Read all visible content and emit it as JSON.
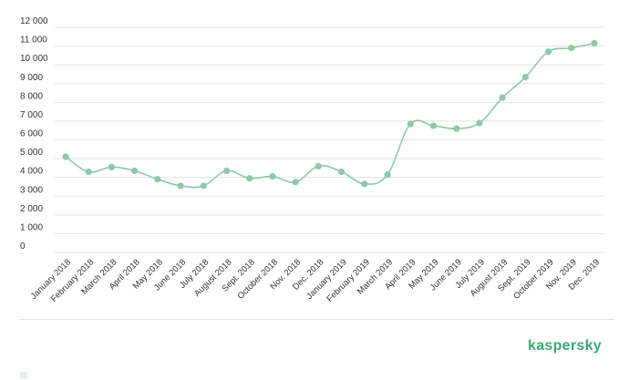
{
  "brand": {
    "name": "kaspersky",
    "color": "#3aa876"
  },
  "chart_data": {
    "type": "line",
    "title": "",
    "xlabel": "",
    "ylabel": "",
    "ylim": [
      0,
      12000
    ],
    "y_ticks": [
      0,
      1000,
      2000,
      3000,
      4000,
      5000,
      6000,
      7000,
      8000,
      9000,
      10000,
      11000,
      12000
    ],
    "y_tick_labels": [
      "0",
      "1 000",
      "2 000",
      "3 000",
      "4 000",
      "5 000",
      "6 000",
      "7 000",
      "8 000",
      "9 000",
      "10 000",
      "11 000",
      "12 000"
    ],
    "grid": true,
    "legend": "none",
    "color": "#8ec9a5",
    "categories": [
      "January 2018",
      "February 2018",
      "March 2018",
      "April 2018",
      "May 2018",
      "June 2018",
      "July 2018",
      "August 2018",
      "Sept. 2018",
      "October 2018",
      "Nov. 2018",
      "Dec. 2018",
      "January 2019",
      "February 2019",
      "March 2019",
      "April 2019",
      "May 2019",
      "June 2019",
      "July 2019",
      "August 2019",
      "Sept. 2019",
      "October 2019",
      "Nov. 2019",
      "Dec. 2019"
    ],
    "series": [
      {
        "values": [
          5100,
          4300,
          4550,
          4350,
          3900,
          3550,
          3550,
          4350,
          3950,
          4050,
          3750,
          4600,
          4300,
          3650,
          4150,
          6850,
          6750,
          6600,
          6900,
          8250,
          9350,
          10700,
          10900,
          11150
        ]
      }
    ]
  }
}
